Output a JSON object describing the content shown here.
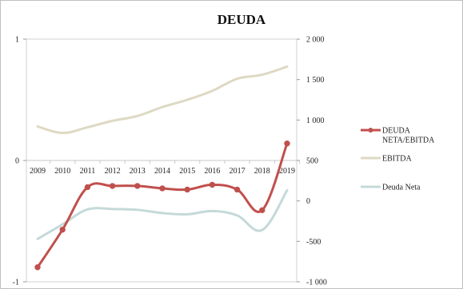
{
  "chart_data": {
    "type": "line",
    "title": "DEUDA",
    "categories": [
      "2009",
      "2010",
      "2011",
      "2012",
      "2013",
      "2014",
      "2015",
      "2016",
      "2017",
      "2018",
      "2019"
    ],
    "left_axis": {
      "min": -1,
      "max": 1,
      "ticks": [
        "1",
        "0",
        "-1"
      ],
      "tick_values": [
        1,
        0,
        -1
      ]
    },
    "right_axis": {
      "min": -1000,
      "max": 2000,
      "ticks": [
        "2 000",
        "1 500",
        "1 000",
        "500",
        "0",
        "-500",
        "-1 000"
      ],
      "tick_values": [
        2000,
        1500,
        1000,
        500,
        0,
        -500,
        -1000
      ]
    },
    "legend_position": "right",
    "grid": false,
    "series": [
      {
        "name": "DEUDA NETA/EBITDA",
        "name_lines": [
          "DEUDA",
          "NETA/EBITDA"
        ],
        "axis": "left",
        "color": "#c0504d",
        "markers": true,
        "values": [
          -0.88,
          -0.57,
          -0.22,
          -0.21,
          -0.21,
          -0.23,
          -0.24,
          -0.2,
          -0.24,
          -0.41,
          0.14
        ]
      },
      {
        "name": "EBITDA",
        "name_lines": [
          "EBITDA"
        ],
        "axis": "right",
        "color": "#ddd9c3",
        "markers": false,
        "values": [
          920,
          840,
          910,
          990,
          1050,
          1160,
          1250,
          1360,
          1510,
          1560,
          1660
        ]
      },
      {
        "name": "Deuda Neta",
        "name_lines": [
          "Deuda Neta"
        ],
        "axis": "right",
        "color": "#c5d9d9",
        "markers": false,
        "values": [
          -470,
          -290,
          -105,
          -100,
          -110,
          -150,
          -165,
          -125,
          -180,
          -360,
          130
        ]
      }
    ]
  }
}
